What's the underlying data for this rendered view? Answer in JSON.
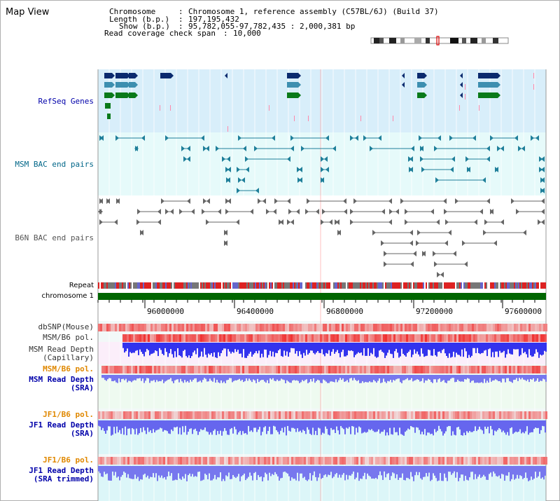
{
  "page": {
    "title": "Map View"
  },
  "header": {
    "chromosome_label": "Chromosome",
    "chromosome_value": "Chromosome 1, reference assembly (C57BL/6J) (Build 37)",
    "length_label": "Length (b.p.)",
    "length_value": "197,195,432",
    "show_label": "Show (b.p.)",
    "show_value": "95,782,055-97,782,435 : 2,000,381 bp",
    "coverage_label": "Read coverage check span",
    "coverage_value": "10,000"
  },
  "tracks": {
    "refseq": {
      "label": "RefSeq Genes",
      "color": "#0000aa"
    },
    "msm_bac": {
      "label": "MSM BAC end pairs",
      "color": "#006688"
    },
    "b6n_bac": {
      "label": "B6N BAC end pairs",
      "color": "#555555"
    },
    "repeat": {
      "label": "Repeat"
    },
    "chromosome": {
      "label": "chromosome 1"
    },
    "dbsnp": {
      "label": "dbSNP(Mouse)"
    },
    "msm_b6_pol_1": {
      "label": "MSM/B6 pol."
    },
    "msm_read_depth_cap": {
      "label": "MSM Read Depth\n(Capillary)"
    },
    "msm_b6_pol_2": {
      "label": "MSM/B6 pol.",
      "color": "#e08800"
    },
    "msm_read_depth_sra": {
      "label": "MSM Read Depth\n(SRA)",
      "color": "#0000aa"
    },
    "jf1_b6_pol_1": {
      "label": "JF1/B6 pol.",
      "color": "#e08800"
    },
    "jf1_read_depth_sra": {
      "label": "JF1 Read Depth\n(SRA)",
      "color": "#0000aa"
    },
    "jf1_b6_pol_2": {
      "label": "JF1/B6 pol.",
      "color": "#e08800"
    },
    "jf1_read_depth_trim": {
      "label": "JF1 Read Depth\n(SRA trimmed)",
      "color": "#0000aa"
    }
  },
  "axis": {
    "ticks": [
      "96000000",
      "96400000",
      "96800000",
      "97200000",
      "97600000"
    ],
    "range": [
      95782055,
      97782435
    ]
  },
  "colors": {
    "refseq_bg": "#d8eefa",
    "msm_bac_bg": "#e6fafa",
    "b6n_bac_bg": "#ffffff",
    "gene_navy": "#0a2a6e",
    "gene_teal": "#3d8fb0",
    "gene_green": "#0a7a1a",
    "chromosome_bar": "#006600",
    "depth_blue": "#3333ee",
    "depth_light": "#7777ee",
    "pol_red": "#ee3333"
  }
}
